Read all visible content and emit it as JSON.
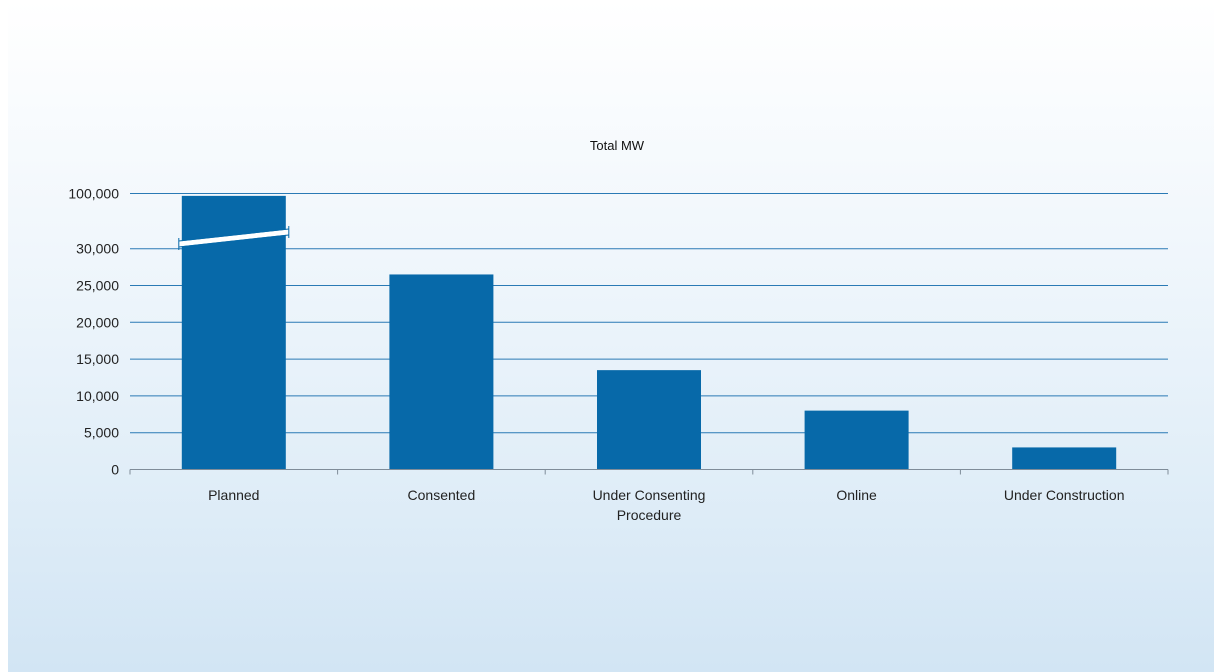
{
  "chart_data": {
    "type": "bar",
    "title": "Total MW",
    "xlabel": "",
    "ylabel": "",
    "categories": [
      "Planned",
      "Consented",
      "Under Consenting Procedure",
      "Online",
      "Under Construction"
    ],
    "category_label_lines": [
      [
        "Planned"
      ],
      [
        "Consented"
      ],
      [
        "Under Consenting",
        "Procedure"
      ],
      [
        "Online"
      ],
      [
        "Under Construction"
      ]
    ],
    "values": [
      97000,
      26500,
      13500,
      8000,
      3000
    ],
    "ylim": [
      0,
      100000
    ],
    "axis_break": {
      "from": 30000,
      "to": 100000,
      "broken_category": "Planned"
    },
    "y_ticks": [
      {
        "value": 0,
        "label": "0"
      },
      {
        "value": 5000,
        "label": "5,000"
      },
      {
        "value": 10000,
        "label": "10,000"
      },
      {
        "value": 15000,
        "label": "15,000"
      },
      {
        "value": 20000,
        "label": "20,000"
      },
      {
        "value": 25000,
        "label": "25,000"
      },
      {
        "value": 30000,
        "label": "30,000"
      },
      {
        "value": 100000,
        "label": "100,000"
      }
    ],
    "grid": true,
    "legend": "none",
    "colors": {
      "bar": "#0769a9",
      "grid": "#2a7ab5",
      "axis": "#7f8c99",
      "break": "#ffffff"
    }
  }
}
